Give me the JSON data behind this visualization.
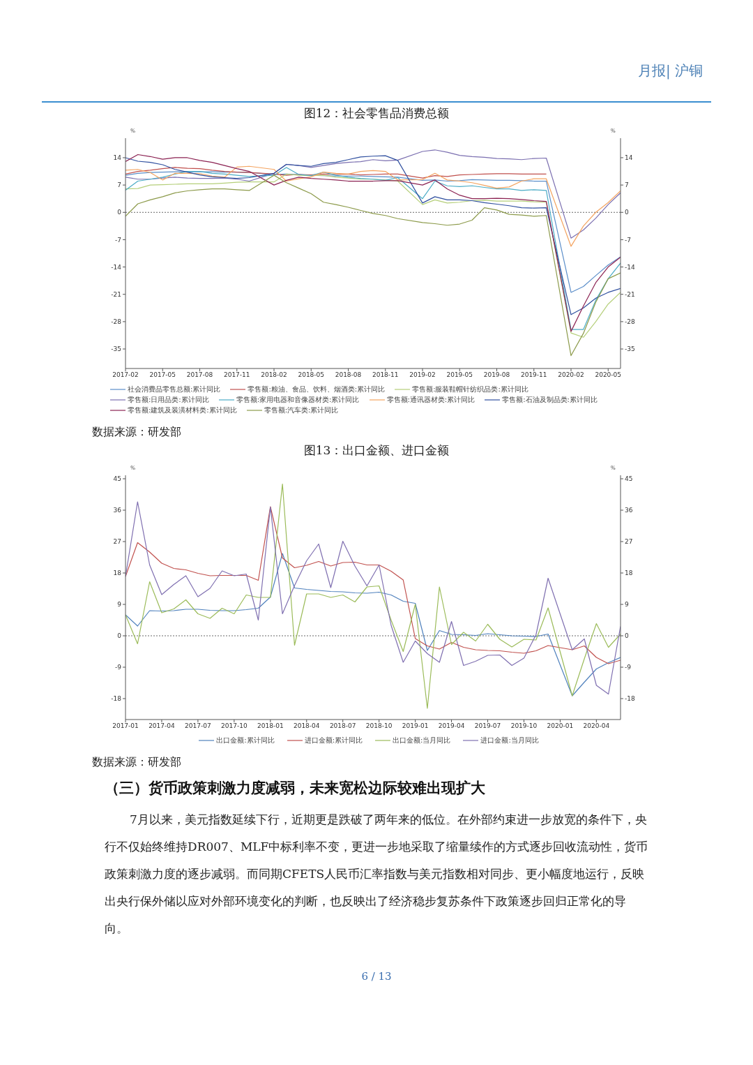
{
  "chart_data": [
    {
      "type": "other",
      "annotations": [
        "月报| 沪铜"
      ]
    },
    {
      "type": "line",
      "title": "图12：社会零售品消费总额",
      "ylabel": "%",
      "y2label": "%",
      "legend": "bottom",
      "marker": "none",
      "line_style": "solid",
      "x": [
        "2017-02",
        "2017-03",
        "2017-04",
        "2017-05",
        "2017-06",
        "2017-07",
        "2017-08",
        "2017-09",
        "2017-10",
        "2017-11",
        "2017-12",
        "2018-02",
        "2018-03",
        "2018-04",
        "2018-05",
        "2018-06",
        "2018-07",
        "2018-08",
        "2018-09",
        "2018-10",
        "2018-11",
        "2018-12",
        "2019-02",
        "2019-03",
        "2019-04",
        "2019-05",
        "2019-06",
        "2019-07",
        "2019-08",
        "2019-09",
        "2019-10",
        "2019-11",
        "2019-12",
        "2020-02",
        "2020-03",
        "2020-04",
        "2020-05",
        "2020-06"
      ],
      "xlim": [
        "2017-02",
        "2020-06"
      ],
      "xticks": [
        "2017-02",
        "2017-05",
        "2017-08",
        "2017-11",
        "2018-02",
        "2018-05",
        "2018-08",
        "2018-11",
        "2019-02",
        "2019-05",
        "2019-08",
        "2019-11",
        "2020-02",
        "2020-05"
      ],
      "ylim": [
        -40,
        19
      ],
      "yticks": [
        -35,
        -28,
        -21,
        -14,
        -7,
        0,
        7,
        14
      ],
      "y2lim": [
        -40,
        19
      ],
      "y2ticks": [
        -35,
        -28,
        -21,
        -14,
        -7,
        0,
        7,
        14
      ],
      "ref_lines": [
        {
          "axis": "y",
          "value": 0,
          "line_style": "dotted",
          "color": "#666666"
        }
      ],
      "series": [
        {
          "name": "社会消费品零售总额:累计同比",
          "color": "#5b8ec9",
          "values": [
            9.5,
            10.0,
            10.2,
            10.3,
            10.4,
            10.4,
            10.4,
            10.4,
            10.3,
            10.3,
            10.2,
            9.7,
            9.8,
            9.7,
            9.5,
            9.4,
            9.3,
            9.3,
            9.3,
            9.2,
            9.1,
            9.0,
            8.2,
            8.3,
            8.0,
            8.1,
            8.4,
            8.3,
            8.2,
            8.2,
            8.1,
            8.0,
            8.0,
            -20.5,
            -19.0,
            -16.2,
            -13.5,
            -11.4
          ]
        },
        {
          "name": "零售额:粮油、食品、饮料、烟酒类:累计同比",
          "color": "#c0504d",
          "values": [
            9.8,
            10.5,
            10.8,
            11.2,
            11.5,
            11.3,
            11.2,
            10.8,
            10.5,
            10.3,
            10.2,
            9.8,
            9.5,
            9.7,
            9.6,
            9.8,
            9.7,
            9.8,
            9.6,
            9.7,
            9.8,
            9.8,
            8.8,
            9.4,
            9.2,
            9.6,
            9.7,
            9.8,
            9.9,
            9.9,
            9.8,
            9.8,
            9.8,
            null,
            null,
            null,
            null,
            null
          ]
        },
        {
          "name": "零售额:服装鞋帽针纺织品类:累计同比",
          "color": "#b5cf7a",
          "values": [
            6.0,
            6.1,
            7.0,
            7.1,
            7.2,
            7.3,
            7.3,
            7.3,
            7.5,
            7.7,
            7.8,
            7.8,
            9.8,
            9.5,
            9.4,
            9.5,
            9.0,
            8.8,
            8.5,
            8.5,
            8.3,
            8.0,
            2.0,
            3.2,
            2.4,
            2.6,
            3.0,
            3.1,
            2.9,
            2.9,
            2.9,
            2.7,
            2.6,
            -30.9,
            -32.0,
            -28.0,
            -23.5,
            -20.5
          ]
        },
        {
          "name": "零售额:日用品类:累计同比",
          "color": "#7b6fb0",
          "values": [
            9.0,
            8.5,
            8.5,
            8.8,
            9.0,
            8.8,
            8.7,
            8.7,
            8.8,
            8.5,
            8.0,
            10.0,
            12.3,
            12.0,
            11.5,
            12.0,
            12.5,
            12.8,
            13.0,
            13.5,
            13.2,
            13.4,
            15.6,
            16.0,
            15.4,
            14.6,
            14.3,
            14.1,
            13.8,
            13.7,
            13.5,
            13.8,
            13.9,
            -6.6,
            -4.5,
            -1.5,
            2.0,
            5.0
          ]
        },
        {
          "name": "零售额:家用电器和音像器材类:累计同比",
          "color": "#4bacc6",
          "values": [
            5.7,
            8.0,
            8.5,
            9.0,
            9.8,
            10.5,
            10.5,
            10.0,
            9.8,
            9.5,
            9.2,
            9.5,
            11.5,
            9.7,
            9.4,
            10.3,
            9.5,
            9.0,
            8.7,
            8.5,
            8.2,
            8.9,
            3.5,
            8.0,
            6.8,
            6.6,
            6.8,
            6.4,
            6.0,
            6.0,
            5.6,
            5.8,
            5.6,
            -30.0,
            -30.0,
            -22.5,
            -17.0,
            -13.0
          ]
        },
        {
          "name": "零售额:通讯器材类:累计同比",
          "color": "#f4a460",
          "values": [
            10.8,
            11.0,
            10.2,
            8.3,
            10.0,
            10.0,
            9.9,
            9.3,
            9.0,
            11.6,
            11.8,
            11.0,
            8.0,
            8.6,
            9.1,
            10.3,
            10.0,
            9.8,
            10.5,
            10.7,
            10.5,
            8.3,
            8.4,
            10.0,
            8.3,
            8.0,
            7.6,
            6.9,
            6.2,
            6.5,
            8.0,
            8.6,
            8.6,
            -8.7,
            -3.5,
            0.0,
            2.5,
            5.5
          ]
        },
        {
          "name": "零售额:石油及制品类:累计同比",
          "color": "#2f4f9f",
          "values": [
            14.0,
            13.1,
            12.8,
            12.2,
            11.0,
            10.3,
            9.6,
            9.1,
            8.9,
            8.7,
            8.9,
            10.0,
            12.3,
            12.0,
            11.8,
            12.5,
            12.8,
            13.5,
            14.2,
            14.4,
            14.5,
            13.3,
            2.4,
            4.0,
            3.2,
            3.2,
            3.0,
            2.5,
            2.1,
            1.7,
            1.2,
            1.1,
            1.2,
            -26.2,
            -24.5,
            -22.0,
            -20.5,
            -19.5
          ]
        },
        {
          "name": "零售额:建筑及装潢材料类:累计同比",
          "color": "#8b2252",
          "values": [
            13.0,
            14.8,
            14.3,
            13.6,
            14.0,
            14.0,
            13.3,
            12.8,
            12.0,
            11.2,
            10.5,
            7.0,
            8.2,
            9.0,
            8.7,
            8.5,
            8.3,
            8.0,
            8.0,
            8.0,
            8.1,
            8.1,
            7.0,
            8.3,
            6.0,
            4.4,
            3.5,
            3.5,
            3.6,
            3.5,
            3.3,
            3.0,
            2.8,
            -30.5,
            -24.0,
            -18.0,
            -14.0,
            -11.5
          ]
        },
        {
          "name": "零售额:汽车类:累计同比",
          "color": "#8c9a4a",
          "values": [
            -1.0,
            2.2,
            3.2,
            4.0,
            5.0,
            5.5,
            5.8,
            6.0,
            6.0,
            5.8,
            5.6,
            9.5,
            7.6,
            6.2,
            4.8,
            2.6,
            2.0,
            1.3,
            0.5,
            -0.3,
            -0.8,
            -1.6,
            -2.6,
            -2.9,
            -3.3,
            -3.0,
            -2.0,
            1.2,
            0.6,
            -0.5,
            -0.7,
            -1.0,
            -0.8,
            -36.7,
            -31.0,
            -23.0,
            -17.0,
            -15.5
          ]
        }
      ],
      "annotations": [
        "数据来源：研发部"
      ]
    },
    {
      "type": "line",
      "title": "图13：出口金额、进口金额",
      "ylabel": "%",
      "y2label": "%",
      "legend": "bottom",
      "marker": "none",
      "line_style": "solid",
      "x": [
        "2017-01",
        "2017-02",
        "2017-03",
        "2017-04",
        "2017-05",
        "2017-06",
        "2017-07",
        "2017-08",
        "2017-09",
        "2017-10",
        "2017-11",
        "2017-12",
        "2018-01",
        "2018-02",
        "2018-03",
        "2018-04",
        "2018-05",
        "2018-06",
        "2018-07",
        "2018-08",
        "2018-09",
        "2018-10",
        "2018-11",
        "2018-12",
        "2019-01",
        "2019-02",
        "2019-03",
        "2019-04",
        "2019-05",
        "2019-06",
        "2019-07",
        "2019-08",
        "2019-09",
        "2019-10",
        "2019-11",
        "2019-12",
        "2020-02",
        "2020-03",
        "2020-04",
        "2020-05",
        "2020-06"
      ],
      "xlim": [
        "2017-01",
        "2020-06"
      ],
      "xticks": [
        "2017-01",
        "2017-04",
        "2017-07",
        "2017-10",
        "2018-01",
        "2018-04",
        "2018-07",
        "2018-10",
        "2019-01",
        "2019-04",
        "2019-07",
        "2019-10",
        "2020-01",
        "2020-04"
      ],
      "ylim": [
        -24,
        46
      ],
      "yticks": [
        -18,
        -9,
        0,
        9,
        18,
        27,
        36,
        45
      ],
      "y2lim": [
        -24,
        46
      ],
      "y2ticks": [
        -18,
        -9,
        0,
        9,
        18,
        27,
        36,
        45
      ],
      "ref_lines": [
        {
          "axis": "y",
          "value": 0,
          "line_style": "dotted",
          "color": "#666666"
        }
      ],
      "series": [
        {
          "name": "出口金额:累计同比",
          "color": "#4f81bd",
          "values": [
            6.0,
            2.8,
            7.2,
            7.1,
            7.2,
            7.6,
            7.6,
            7.3,
            7.2,
            7.2,
            7.5,
            7.9,
            11.1,
            23.6,
            13.7,
            13.3,
            13.0,
            12.7,
            12.6,
            12.3,
            12.2,
            12.5,
            11.7,
            9.9,
            9.3,
            -4.2,
            1.5,
            0.4,
            0.3,
            0.1,
            0.6,
            0.3,
            0.0,
            -0.1,
            -0.2,
            0.5,
            -17.2,
            -13.3,
            -9.5,
            -7.7,
            -6.2
          ]
        },
        {
          "name": "进口金额:累计同比",
          "color": "#c0504d",
          "values": [
            17.0,
            26.7,
            24.0,
            20.8,
            19.3,
            18.9,
            17.9,
            17.2,
            17.3,
            17.3,
            17.3,
            15.9,
            37.0,
            22.3,
            19.5,
            20.2,
            21.3,
            20.0,
            21.0,
            21.1,
            20.3,
            20.3,
            18.5,
            16.0,
            -0.8,
            -2.9,
            -3.8,
            -1.9,
            -3.3,
            -4.0,
            -4.2,
            -4.3,
            -4.7,
            -5.0,
            -4.3,
            -2.8,
            -4.0,
            -2.9,
            -6.2,
            -8.0,
            -7.0
          ]
        },
        {
          "name": "出口金额:当月同比",
          "color": "#9bbb59",
          "values": [
            6.0,
            -2.3,
            15.5,
            6.6,
            7.7,
            10.3,
            6.3,
            5.0,
            7.9,
            6.3,
            11.7,
            11.0,
            11.0,
            43.5,
            -2.7,
            12.0,
            12.0,
            11.0,
            11.7,
            9.7,
            14.0,
            14.3,
            4.5,
            -4.5,
            9.0,
            -20.8,
            14.0,
            -2.5,
            1.0,
            -1.5,
            3.3,
            -1.0,
            -3.2,
            -1.0,
            -1.2,
            8.0,
            -17.2,
            -6.6,
            3.5,
            -3.3,
            0.5
          ]
        },
        {
          "name": "进口金额:当月同比",
          "color": "#7f6fb0",
          "values": [
            17.0,
            38.4,
            20.3,
            11.8,
            14.7,
            17.2,
            11.2,
            13.6,
            18.6,
            17.2,
            17.7,
            4.5,
            36.9,
            6.3,
            14.4,
            21.5,
            26.3,
            13.8,
            27.1,
            20.0,
            14.3,
            20.3,
            3.0,
            -7.6,
            -1.5,
            -5.1,
            -7.6,
            4.1,
            -8.5,
            -7.3,
            -5.6,
            -5.5,
            -8.5,
            -6.4,
            0.3,
            16.5,
            -4.0,
            -0.9,
            -14.2,
            -16.7,
            2.7
          ]
        }
      ],
      "annotations": [
        "数据来源：研发部"
      ]
    },
    {
      "type": "other",
      "title": "（三）货币政策刺激力度减弱，未来宽松边际较难出现扩大",
      "annotations": [
        "7月以来，美元指数延续下行，近期更是跌破了两年来的低位。在外部约束进一步放宽的条件下，央行不仅始终维持DR007、MLF中标利率不变，更进一步地采取了缩量续作的方式逐步回收流动性，货币政策刺激力度的逐步减弱。而同期CFETS人民币汇率指数与美元指数相对同步、更小幅度地运行，反映出央行保外储以应对外部环境变化的判断，也反映出了经济稳步复苏条件下政策逐步回归正常化的导向。",
        "6 / 13"
      ]
    }
  ]
}
